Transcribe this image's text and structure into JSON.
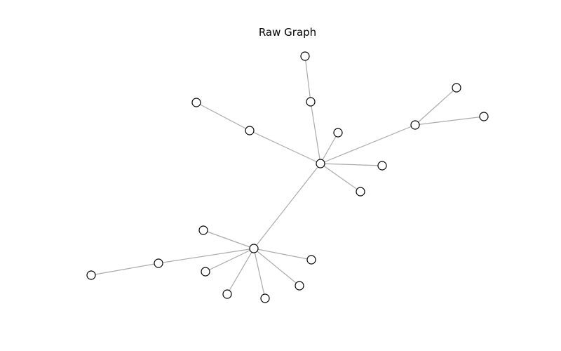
{
  "title": "Raw Graph",
  "colors": {
    "edge": "#aaaaaa",
    "node_fill": "#ffffff",
    "node_stroke": "#000000",
    "background": "#ffffff"
  },
  "graph": {
    "nodes": [
      {
        "id": "hub_a"
      },
      {
        "id": "a1"
      },
      {
        "id": "a1_leaf"
      },
      {
        "id": "a2"
      },
      {
        "id": "a2_leaf"
      },
      {
        "id": "a3"
      },
      {
        "id": "a4"
      },
      {
        "id": "a5"
      },
      {
        "id": "a6"
      },
      {
        "id": "a6_leaf1"
      },
      {
        "id": "a6_leaf2"
      },
      {
        "id": "hub_b"
      },
      {
        "id": "b1"
      },
      {
        "id": "b2"
      },
      {
        "id": "b2_leaf"
      },
      {
        "id": "b3"
      },
      {
        "id": "b4"
      },
      {
        "id": "b5"
      },
      {
        "id": "b6"
      },
      {
        "id": "b7"
      }
    ],
    "edges": [
      [
        "hub_a",
        "a1"
      ],
      [
        "a1",
        "a1_leaf"
      ],
      [
        "hub_a",
        "a2"
      ],
      [
        "a2",
        "a2_leaf"
      ],
      [
        "hub_a",
        "a3"
      ],
      [
        "hub_a",
        "a4"
      ],
      [
        "hub_a",
        "a5"
      ],
      [
        "hub_a",
        "a6"
      ],
      [
        "a6",
        "a6_leaf1"
      ],
      [
        "a6",
        "a6_leaf2"
      ],
      [
        "hub_a",
        "hub_b"
      ],
      [
        "hub_b",
        "b1"
      ],
      [
        "hub_b",
        "b2"
      ],
      [
        "b2",
        "b2_leaf"
      ],
      [
        "hub_b",
        "b3"
      ],
      [
        "hub_b",
        "b4"
      ],
      [
        "hub_b",
        "b5"
      ],
      [
        "hub_b",
        "b6"
      ],
      [
        "hub_b",
        "b7"
      ]
    ]
  }
}
